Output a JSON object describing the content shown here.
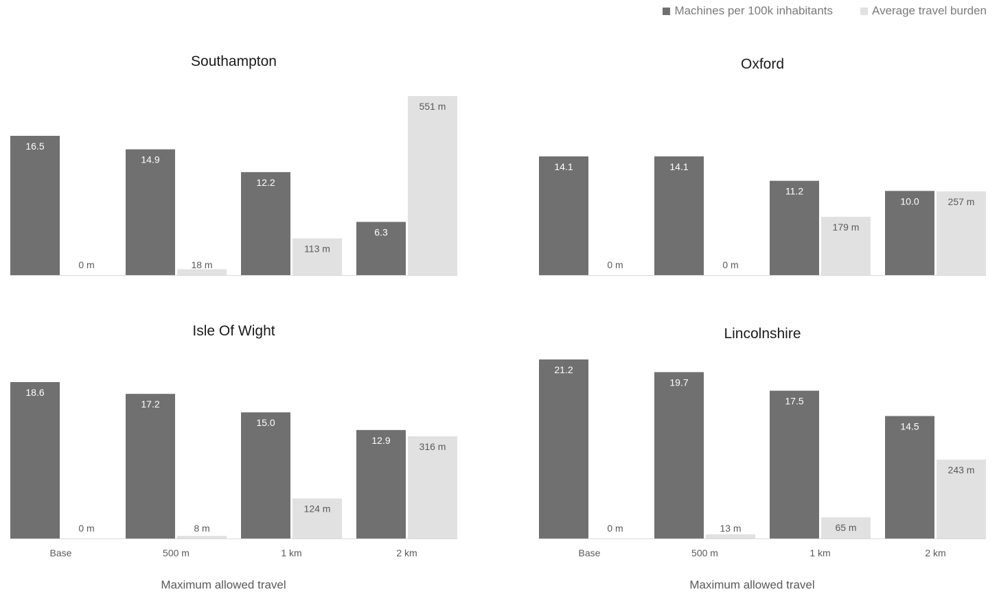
{
  "colors": {
    "machines": "#707070",
    "travel": "#e1e1e1",
    "baseline": "#d9d9d9"
  },
  "legend": {
    "machines_label": "Machines per 100k inhabitants",
    "travel_label": "Average travel burden"
  },
  "chart_data": [
    {
      "type": "bar",
      "title": "Southampton",
      "categories": [
        "Base",
        "500 m",
        "1 km",
        "2 km"
      ],
      "xlabel": "Maximum allowed travel",
      "show_xaxis": false,
      "series": [
        {
          "name": "Machines per 100k inhabitants",
          "values": [
            16.5,
            14.9,
            12.2,
            6.3
          ],
          "labels": [
            "16.5",
            "14.9",
            "12.2",
            "6.3"
          ]
        },
        {
          "name": "Average travel burden",
          "values": [
            0,
            18,
            113,
            551
          ],
          "labels": [
            "0 m",
            "18 m",
            "113 m",
            "551 m"
          ]
        }
      ]
    },
    {
      "type": "bar",
      "title": "Oxford",
      "categories": [
        "Base",
        "500 m",
        "1 km",
        "2 km"
      ],
      "xlabel": "Maximum allowed travel",
      "show_xaxis": false,
      "series": [
        {
          "name": "Machines per 100k inhabitants",
          "values": [
            14.1,
            14.1,
            11.2,
            10.0
          ],
          "labels": [
            "14.1",
            "14.1",
            "11.2",
            "10.0"
          ]
        },
        {
          "name": "Average travel burden",
          "values": [
            0,
            0,
            179,
            257
          ],
          "labels": [
            "0 m",
            "0 m",
            "179 m",
            "257 m"
          ]
        }
      ]
    },
    {
      "type": "bar",
      "title": "Isle Of Wight",
      "categories": [
        "Base",
        "500 m",
        "1 km",
        "2 km"
      ],
      "xlabel": "Maximum allowed travel",
      "show_xaxis": true,
      "series": [
        {
          "name": "Machines per 100k inhabitants",
          "values": [
            18.6,
            17.2,
            15.0,
            12.9
          ],
          "labels": [
            "18.6",
            "17.2",
            "15.0",
            "12.9"
          ]
        },
        {
          "name": "Average travel burden",
          "values": [
            0,
            8,
            124,
            316
          ],
          "labels": [
            "0 m",
            "8 m",
            "124 m",
            "316 m"
          ]
        }
      ]
    },
    {
      "type": "bar",
      "title": "Lincolnshire",
      "categories": [
        "Base",
        "500 m",
        "1 km",
        "2 km"
      ],
      "xlabel": "Maximum allowed travel",
      "show_xaxis": true,
      "series": [
        {
          "name": "Machines per 100k inhabitants",
          "values": [
            21.2,
            19.7,
            17.5,
            14.5
          ],
          "labels": [
            "21.2",
            "19.7",
            "17.5",
            "14.5"
          ]
        },
        {
          "name": "Average travel burden",
          "values": [
            0,
            13,
            65,
            243
          ],
          "labels": [
            "0 m",
            "13 m",
            "65 m",
            "243 m"
          ]
        }
      ]
    }
  ]
}
